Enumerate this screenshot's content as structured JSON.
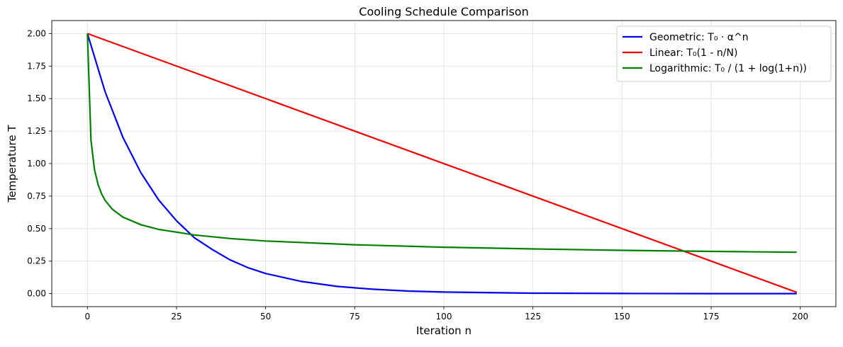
{
  "chart_data": {
    "type": "line",
    "title": "Cooling Schedule Comparison",
    "xlabel": "Iteration n",
    "ylabel": "Temperature T",
    "xlim": [
      -10,
      210
    ],
    "ylim": [
      -0.1,
      2.1
    ],
    "x_ticks": [
      0,
      25,
      50,
      75,
      100,
      125,
      150,
      175,
      200
    ],
    "y_ticks": [
      0.0,
      0.25,
      0.5,
      0.75,
      1.0,
      1.25,
      1.5,
      1.75,
      2.0
    ],
    "x_tick_labels": [
      "0",
      "25",
      "50",
      "75",
      "100",
      "125",
      "150",
      "175",
      "200"
    ],
    "y_tick_labels": [
      "0.00",
      "0.25",
      "0.50",
      "0.75",
      "1.00",
      "1.25",
      "1.50",
      "1.75",
      "2.00"
    ],
    "grid": true,
    "legend_position": "top-right",
    "series": [
      {
        "name": "Geometric: T₀ · α^n",
        "color": "#0000ee",
        "x": [
          0,
          5,
          10,
          15,
          20,
          25,
          30,
          35,
          40,
          45,
          50,
          60,
          70,
          80,
          90,
          100,
          125,
          150,
          175,
          199
        ],
        "y": [
          2.0,
          1.55,
          1.2,
          0.93,
          0.72,
          0.56,
          0.43,
          0.34,
          0.26,
          0.2,
          0.155,
          0.094,
          0.056,
          0.034,
          0.02,
          0.012,
          0.0035,
          0.0011,
          0.0003,
          0.0001
        ]
      },
      {
        "name": "Linear: T₀(1 - n/N)",
        "color": "#ee0000",
        "x": [
          0,
          199
        ],
        "y": [
          2.0,
          0.01
        ]
      },
      {
        "name": "Logarithmic: T₀ / (1 + log(1+n))",
        "color": "#008000",
        "x": [
          0,
          1,
          2,
          3,
          4,
          5,
          7,
          10,
          15,
          20,
          30,
          40,
          50,
          75,
          100,
          125,
          150,
          175,
          199
        ],
        "y": [
          2.0,
          1.181,
          0.952,
          0.838,
          0.766,
          0.716,
          0.649,
          0.588,
          0.53,
          0.494,
          0.451,
          0.424,
          0.405,
          0.376,
          0.357,
          0.344,
          0.333,
          0.325,
          0.318
        ]
      }
    ]
  }
}
